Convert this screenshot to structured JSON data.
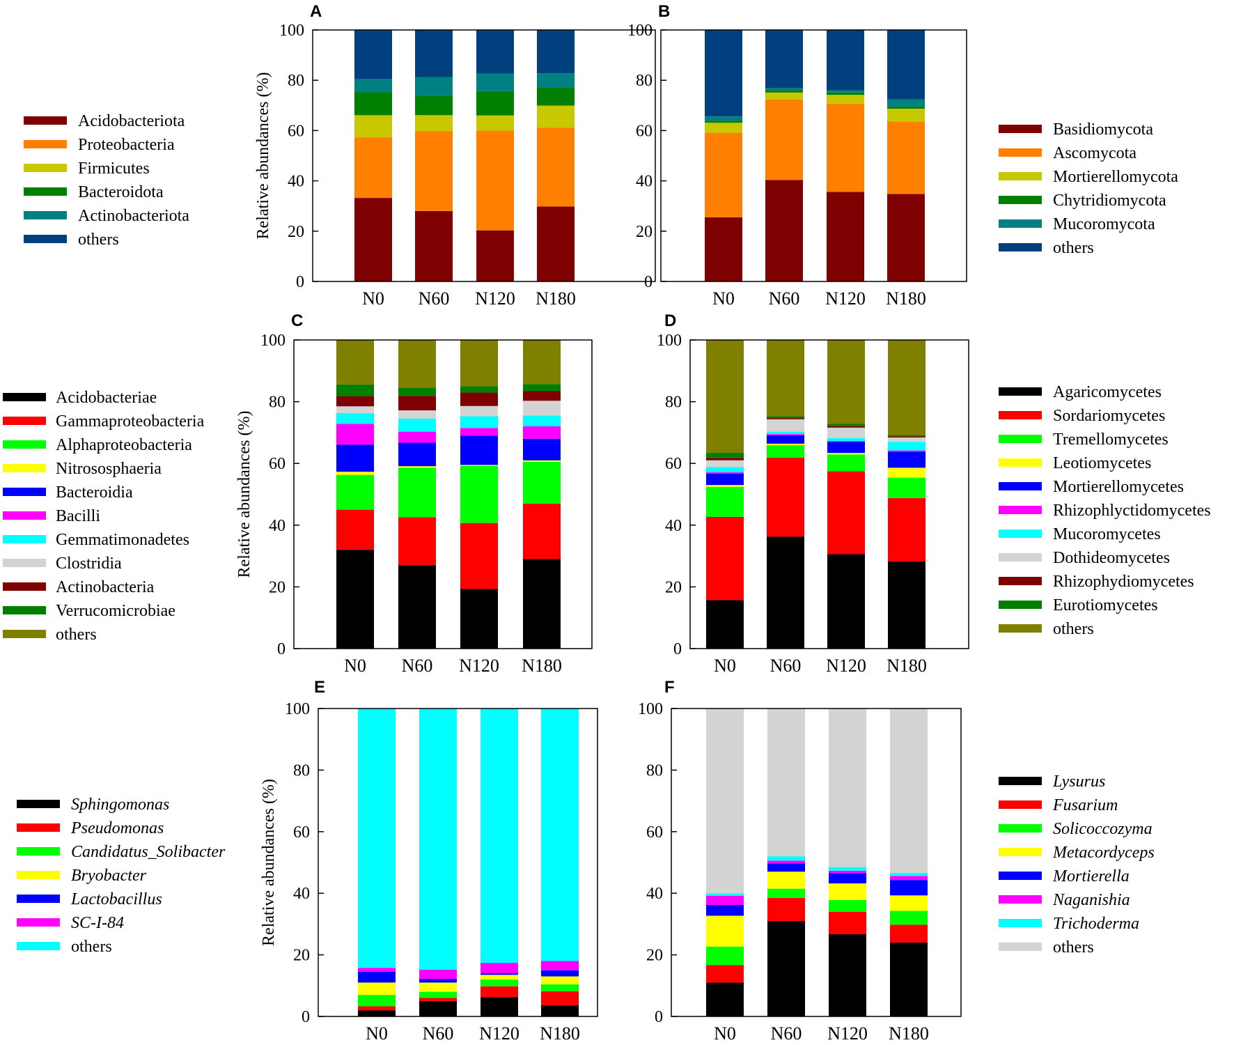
{
  "chart_data": [
    {
      "id": "A",
      "type": "bar",
      "stacked": true,
      "ylabel": "Relative abundances (%)",
      "ylim": [
        0,
        100
      ],
      "yticks": [
        0,
        20,
        40,
        60,
        80,
        100
      ],
      "categories": [
        "N0",
        "N60",
        "N120",
        "N180"
      ],
      "legend_side": "left",
      "legend_italic": false,
      "series": [
        {
          "name": "Acidobacteriota",
          "color": "#7f0000",
          "values": [
            33.2,
            28.0,
            20.3,
            29.8
          ]
        },
        {
          "name": "Proteobacteria",
          "color": "#ff8000",
          "values": [
            24.1,
            31.8,
            39.7,
            31.3
          ]
        },
        {
          "name": "Firmicutes",
          "color": "#c8c800",
          "values": [
            8.8,
            6.3,
            6.0,
            8.8
          ]
        },
        {
          "name": "Bacteroidota",
          "color": "#007f00",
          "values": [
            9.1,
            7.6,
            9.7,
            7.1
          ]
        },
        {
          "name": "Actinobacteriota",
          "color": "#008080",
          "values": [
            5.2,
            7.6,
            7.0,
            5.8
          ]
        },
        {
          "name": "others",
          "color": "#00407f",
          "values": [
            19.6,
            18.7,
            17.3,
            17.2
          ]
        }
      ]
    },
    {
      "id": "B",
      "type": "bar",
      "stacked": true,
      "ylabel": "",
      "ylim": [
        0,
        100
      ],
      "yticks": [
        0,
        20,
        40,
        60,
        80,
        100
      ],
      "categories": [
        "N0",
        "N60",
        "N120",
        "N180"
      ],
      "legend_side": "right",
      "legend_italic": false,
      "series": [
        {
          "name": "Basidiomycota",
          "color": "#7f0000",
          "values": [
            25.5,
            40.3,
            35.6,
            34.8
          ]
        },
        {
          "name": "Ascomycota",
          "color": "#ff8000",
          "values": [
            33.6,
            32.0,
            35.0,
            28.8
          ]
        },
        {
          "name": "Mortierellomycota",
          "color": "#c8c800",
          "values": [
            4.0,
            2.8,
            3.6,
            5.1
          ]
        },
        {
          "name": "Chytridiomycota",
          "color": "#007f00",
          "values": [
            0.8,
            0.9,
            0.9,
            0.8
          ]
        },
        {
          "name": "Mucoromycota",
          "color": "#008080",
          "values": [
            1.7,
            0.8,
            0.9,
            2.9
          ]
        },
        {
          "name": "others",
          "color": "#00407f",
          "values": [
            34.4,
            23.2,
            24.0,
            27.6
          ]
        }
      ]
    },
    {
      "id": "C",
      "type": "bar",
      "stacked": true,
      "ylabel": "Relative abundances (%)",
      "ylim": [
        0,
        100
      ],
      "yticks": [
        0,
        20,
        40,
        60,
        80,
        100
      ],
      "categories": [
        "N0",
        "N60",
        "N120",
        "N180"
      ],
      "legend_side": "left",
      "legend_italic": false,
      "series": [
        {
          "name": "Acidobacteriae",
          "color": "#000000",
          "values": [
            32.0,
            27.0,
            19.3,
            29.0
          ]
        },
        {
          "name": "Gammaproteobacteria",
          "color": "#ff0000",
          "values": [
            13.0,
            15.6,
            21.4,
            18.0
          ]
        },
        {
          "name": "Alphaproteobacteria",
          "color": "#00ff00",
          "values": [
            11.3,
            16.0,
            18.5,
            13.5
          ]
        },
        {
          "name": "Nitrososphaeria",
          "color": "#ffff00",
          "values": [
            1.0,
            0.5,
            0.3,
            0.5
          ]
        },
        {
          "name": "Bacteroidia",
          "color": "#0000ff",
          "values": [
            8.8,
            7.6,
            9.5,
            7.0
          ]
        },
        {
          "name": "Bacilli",
          "color": "#ff00ff",
          "values": [
            6.7,
            3.6,
            2.5,
            4.0
          ]
        },
        {
          "name": "Gemmatimonadetes",
          "color": "#00ffff",
          "values": [
            3.5,
            4.2,
            3.8,
            3.5
          ]
        },
        {
          "name": "Clostridia",
          "color": "#d3d3d3",
          "values": [
            2.2,
            2.7,
            3.3,
            4.8
          ]
        },
        {
          "name": "Actinobacteria",
          "color": "#7f0000",
          "values": [
            3.3,
            4.7,
            4.4,
            3.2
          ]
        },
        {
          "name": "Verrucomicrobiae",
          "color": "#007f00",
          "values": [
            3.8,
            2.7,
            2.0,
            2.2
          ]
        },
        {
          "name": "others",
          "color": "#808000",
          "values": [
            14.4,
            15.4,
            15.0,
            14.3
          ]
        }
      ]
    },
    {
      "id": "D",
      "type": "bar",
      "stacked": true,
      "ylabel": "",
      "ylim": [
        0,
        100
      ],
      "yticks": [
        0,
        20,
        40,
        60,
        80,
        100
      ],
      "categories": [
        "N0",
        "N60",
        "N120",
        "N180"
      ],
      "legend_side": "right",
      "legend_italic": false,
      "series": [
        {
          "name": "Agaricomycetes",
          "color": "#000000",
          "values": [
            15.7,
            36.3,
            30.6,
            28.2
          ]
        },
        {
          "name": "Sordariomycetes",
          "color": "#ff0000",
          "values": [
            27.0,
            25.6,
            26.9,
            20.6
          ]
        },
        {
          "name": "Tremellomycetes",
          "color": "#00ff00",
          "values": [
            9.7,
            4.0,
            5.4,
            6.6
          ]
        },
        {
          "name": "Leotiomycetes",
          "color": "#ffff00",
          "values": [
            0.6,
            0.5,
            0.5,
            3.2
          ]
        },
        {
          "name": "Mortierellomycetes",
          "color": "#0000ff",
          "values": [
            3.7,
            2.7,
            3.6,
            5.2
          ]
        },
        {
          "name": "Rhizophlyctidomycetes",
          "color": "#ff00ff",
          "values": [
            0.4,
            0.4,
            0.3,
            0.4
          ]
        },
        {
          "name": "Mucoromycetes",
          "color": "#00ffff",
          "values": [
            1.7,
            0.8,
            0.9,
            2.8
          ]
        },
        {
          "name": "Dothideomycetes",
          "color": "#d3d3d3",
          "values": [
            2.2,
            4.0,
            3.4,
            1.4
          ]
        },
        {
          "name": "Rhizophydiomycetes",
          "color": "#7f0000",
          "values": [
            0.8,
            0.4,
            0.5,
            0.4
          ]
        },
        {
          "name": "Eurotiomycetes",
          "color": "#007f00",
          "values": [
            1.7,
            0.6,
            0.7,
            0.4
          ]
        },
        {
          "name": "others",
          "color": "#808000",
          "values": [
            36.5,
            24.7,
            27.2,
            30.8
          ]
        }
      ]
    },
    {
      "id": "E",
      "type": "bar",
      "stacked": true,
      "ylabel": "Relative abundances (%)",
      "ylim": [
        0,
        100
      ],
      "yticks": [
        0,
        20,
        40,
        60,
        80,
        100
      ],
      "categories": [
        "N0",
        "N60",
        "N120",
        "N180"
      ],
      "legend_side": "left",
      "legend_italic": true,
      "series": [
        {
          "name": "Sphingomonas",
          "color": "#000000",
          "values": [
            2.0,
            5.0,
            6.3,
            3.6
          ]
        },
        {
          "name": "Pseudomonas",
          "color": "#ff0000",
          "values": [
            1.3,
            1.0,
            3.5,
            4.6
          ]
        },
        {
          "name": "Candidatus_Solibacter",
          "color": "#00ff00",
          "values": [
            3.7,
            2.0,
            2.2,
            2.2
          ]
        },
        {
          "name": "Bryobacter",
          "color": "#ffff00",
          "values": [
            4.0,
            3.0,
            1.5,
            2.6
          ]
        },
        {
          "name": "Lactobacillus",
          "color": "#0000ff",
          "values": [
            3.5,
            1.2,
            0.5,
            2.0
          ]
        },
        {
          "name": "SC-I-84",
          "color": "#ff00ff",
          "values": [
            1.3,
            3.0,
            3.4,
            3.0
          ]
        },
        {
          "name": "others",
          "color": "#00ffff",
          "values": [
            84.2,
            84.8,
            82.6,
            82.0
          ]
        }
      ]
    },
    {
      "id": "F",
      "type": "bar",
      "stacked": true,
      "ylabel": "",
      "ylim": [
        0,
        100
      ],
      "yticks": [
        0,
        20,
        40,
        60,
        80,
        100
      ],
      "categories": [
        "N0",
        "N60",
        "N120",
        "N180"
      ],
      "legend_side": "right",
      "legend_italic": true,
      "series": [
        {
          "name": "Lysurus",
          "color": "#000000",
          "values": [
            11.0,
            31.0,
            26.7,
            24.0
          ]
        },
        {
          "name": "Fusarium",
          "color": "#ff0000",
          "values": [
            5.7,
            7.5,
            7.3,
            5.8
          ]
        },
        {
          "name": "Solicoccozyma",
          "color": "#00ff00",
          "values": [
            6.0,
            3.0,
            3.8,
            4.5
          ]
        },
        {
          "name": "Metacordyceps",
          "color": "#ffff00",
          "values": [
            10.0,
            5.5,
            5.4,
            5.0
          ]
        },
        {
          "name": "Mortierella",
          "color": "#0000ff",
          "values": [
            3.5,
            2.7,
            3.3,
            5.0
          ]
        },
        {
          "name": "Naganishia",
          "color": "#ff00ff",
          "values": [
            3.0,
            0.9,
            0.8,
            1.3
          ]
        },
        {
          "name": "Trichoderma",
          "color": "#00ffff",
          "values": [
            0.8,
            1.4,
            1.2,
            1.0
          ]
        },
        {
          "name": "others",
          "color": "#d3d3d3",
          "values": [
            60.0,
            48.0,
            51.5,
            53.4
          ]
        }
      ]
    }
  ]
}
